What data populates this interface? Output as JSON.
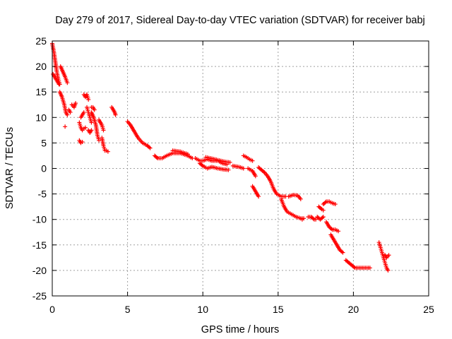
{
  "chart_data": {
    "type": "scatter",
    "title": "Day 279 of 2017, Sidereal Day-to-day VTEC variation (SDTVAR) for receiver babj",
    "xlabel": "GPS time / hours",
    "ylabel": "SDTVAR / TECUs",
    "xlim": [
      0,
      25
    ],
    "ylim": [
      -25,
      25
    ],
    "xticks": [
      0,
      5,
      10,
      15,
      20,
      25
    ],
    "yticks": [
      25,
      20,
      15,
      10,
      5,
      0,
      -5,
      -10,
      -15,
      -20,
      -25
    ],
    "xtick_labels": [
      "0",
      "5",
      "10",
      "15",
      "20",
      "25"
    ],
    "ytick_labels": [
      "25",
      "20",
      "15",
      "10",
      "5",
      "0",
      "-5",
      "-10",
      "-15",
      "-20",
      "-25"
    ],
    "grid": true,
    "marker": "plus",
    "color": "#ff0000",
    "series": [
      {
        "name": "SDTVAR",
        "segments": [
          [
            [
              0.0,
              24.5
            ],
            [
              0.1,
              23.0
            ],
            [
              0.2,
              21.0
            ],
            [
              0.3,
              19.0
            ],
            [
              0.4,
              17.5
            ],
            [
              0.5,
              16.5
            ]
          ],
          [
            [
              0.05,
              18.5
            ],
            [
              0.15,
              18.0
            ],
            [
              0.25,
              17.5
            ],
            [
              0.35,
              17.0
            ],
            [
              0.45,
              16.5
            ]
          ],
          [
            [
              0.55,
              20.0
            ],
            [
              0.7,
              19.0
            ],
            [
              0.85,
              18.0
            ],
            [
              1.0,
              16.8
            ]
          ],
          [
            [
              0.5,
              15.0
            ],
            [
              0.65,
              14.0
            ],
            [
              0.8,
              12.5
            ],
            [
              0.9,
              11.0
            ],
            [
              1.0,
              10.5
            ]
          ],
          [
            [
              0.85,
              8.2
            ]
          ],
          [
            [
              1.3,
              12.5
            ],
            [
              1.45,
              12.0
            ],
            [
              1.55,
              12.8
            ]
          ],
          [
            [
              1.1,
              11.5
            ],
            [
              1.2,
              11.0
            ]
          ],
          [
            [
              1.8,
              9.0
            ],
            [
              1.9,
              8.0
            ],
            [
              2.0,
              7.5
            ],
            [
              2.1,
              7.8
            ],
            [
              2.2,
              8.0
            ]
          ],
          [
            [
              1.8,
              5.5
            ],
            [
              1.9,
              5.0
            ],
            [
              2.0,
              5.2
            ]
          ],
          [
            [
              1.9,
              10.0
            ],
            [
              2.0,
              10.5
            ],
            [
              2.1,
              11.0
            ]
          ],
          [
            [
              2.1,
              14.5
            ],
            [
              2.2,
              14.0
            ],
            [
              2.3,
              14.5
            ],
            [
              2.4,
              13.5
            ]
          ],
          [
            [
              2.3,
              12.0
            ],
            [
              2.4,
              11.0
            ],
            [
              2.5,
              10.0
            ],
            [
              2.6,
              9.0
            ]
          ],
          [
            [
              2.4,
              7.5
            ],
            [
              2.5,
              7.0
            ],
            [
              2.6,
              7.5
            ]
          ],
          [
            [
              2.6,
              12.0
            ],
            [
              2.7,
              12.0
            ],
            [
              2.8,
              11.5
            ]
          ],
          [
            [
              2.6,
              11.0
            ],
            [
              2.75,
              10.0
            ],
            [
              2.9,
              8.5
            ],
            [
              3.0,
              6.5
            ],
            [
              3.1,
              5.5
            ]
          ],
          [
            [
              3.1,
              9.5
            ],
            [
              3.2,
              9.0
            ],
            [
              3.3,
              8.5
            ],
            [
              3.4,
              7.5
            ]
          ],
          [
            [
              3.3,
              6.0
            ],
            [
              3.4,
              4.5
            ],
            [
              3.5,
              3.5
            ],
            [
              3.6,
              3.5
            ],
            [
              3.7,
              3.3
            ]
          ],
          [
            [
              3.95,
              12.0
            ],
            [
              4.05,
              11.5
            ],
            [
              4.15,
              11.0
            ],
            [
              4.2,
              10.5
            ]
          ],
          [
            [
              5.0,
              9.2
            ],
            [
              5.2,
              8.5
            ],
            [
              5.4,
              7.5
            ],
            [
              5.7,
              6.0
            ],
            [
              6.0,
              5.0
            ],
            [
              6.3,
              4.5
            ],
            [
              6.5,
              4.0
            ]
          ],
          [
            [
              6.8,
              2.5
            ],
            [
              7.0,
              2.0
            ],
            [
              7.3,
              2.0
            ],
            [
              7.6,
              2.5
            ],
            [
              8.0,
              3.0
            ],
            [
              8.5,
              3.0
            ],
            [
              9.0,
              2.5
            ],
            [
              9.3,
              2.0
            ]
          ],
          [
            [
              8.0,
              3.5
            ],
            [
              8.5,
              3.3
            ],
            [
              9.0,
              2.8
            ]
          ],
          [
            [
              9.5,
              2.0
            ],
            [
              9.8,
              1.5
            ],
            [
              10.0,
              1.5
            ],
            [
              10.3,
              1.8
            ],
            [
              10.6,
              1.5
            ],
            [
              11.0,
              1.5
            ],
            [
              11.3,
              1.0
            ],
            [
              11.6,
              0.8
            ]
          ],
          [
            [
              9.8,
              1.0
            ],
            [
              10.0,
              0.5
            ],
            [
              10.3,
              0.0
            ],
            [
              10.6,
              0.3
            ],
            [
              11.0,
              0.0
            ],
            [
              11.4,
              -0.2
            ],
            [
              11.7,
              -0.3
            ]
          ],
          [
            [
              10.2,
              2.2
            ],
            [
              10.5,
              2.0
            ],
            [
              10.8,
              1.8
            ],
            [
              11.2,
              1.5
            ],
            [
              11.5,
              1.3
            ],
            [
              11.8,
              1.2
            ]
          ],
          [
            [
              12.0,
              0.5
            ],
            [
              12.4,
              0.3
            ],
            [
              12.7,
              0.0
            ]
          ],
          [
            [
              12.7,
              2.5
            ],
            [
              12.9,
              2.2
            ],
            [
              13.1,
              1.8
            ],
            [
              13.3,
              1.5
            ]
          ],
          [
            [
              13.0,
              0.0
            ],
            [
              13.3,
              -0.5
            ],
            [
              13.5,
              -1.5
            ]
          ],
          [
            [
              13.3,
              -3.5
            ],
            [
              13.5,
              -4.5
            ],
            [
              13.7,
              -5.5
            ]
          ],
          [
            [
              13.7,
              0.2
            ],
            [
              13.9,
              -0.3
            ],
            [
              14.1,
              -0.8
            ],
            [
              14.3,
              -1.5
            ],
            [
              14.5,
              -2.5
            ],
            [
              14.7,
              -4.0
            ],
            [
              14.9,
              -5.0
            ],
            [
              15.2,
              -5.5
            ],
            [
              15.5,
              -5.5
            ]
          ],
          [
            [
              15.2,
              -6.0
            ],
            [
              15.4,
              -7.5
            ],
            [
              15.6,
              -8.5
            ],
            [
              15.9,
              -9.0
            ],
            [
              16.2,
              -9.5
            ],
            [
              16.5,
              -9.8
            ],
            [
              16.7,
              -9.8
            ]
          ],
          [
            [
              15.7,
              -5.5
            ],
            [
              16.0,
              -5.2
            ],
            [
              16.3,
              -5.3
            ],
            [
              16.5,
              -6.0
            ]
          ],
          [
            [
              16.6,
              -10.0
            ]
          ],
          [
            [
              17.0,
              -9.5
            ],
            [
              17.2,
              -9.5
            ],
            [
              17.4,
              -10.0
            ],
            [
              17.5,
              -10.0
            ]
          ],
          [
            [
              17.6,
              -9.5
            ],
            [
              17.8,
              -10.0
            ],
            [
              18.0,
              -9.5
            ]
          ],
          [
            [
              17.7,
              -7.5
            ],
            [
              17.9,
              -8.0
            ],
            [
              18.0,
              -8.2
            ]
          ],
          [
            [
              18.0,
              -7.0
            ],
            [
              18.2,
              -6.5
            ],
            [
              18.4,
              -6.5
            ],
            [
              18.6,
              -6.8
            ],
            [
              18.8,
              -7.0
            ]
          ],
          [
            [
              18.2,
              -10.5
            ],
            [
              18.4,
              -11.5
            ],
            [
              18.6,
              -12.0
            ],
            [
              18.8,
              -12.0
            ],
            [
              19.0,
              -12.3
            ]
          ],
          [
            [
              18.5,
              -13.0
            ],
            [
              18.7,
              -14.0
            ],
            [
              18.9,
              -15.0
            ],
            [
              19.1,
              -16.0
            ],
            [
              19.3,
              -16.5
            ]
          ],
          [
            [
              19.5,
              -18.0
            ],
            [
              19.7,
              -18.5
            ],
            [
              19.9,
              -19.0
            ],
            [
              20.1,
              -19.5
            ],
            [
              20.4,
              -19.5
            ],
            [
              20.8,
              -19.5
            ],
            [
              21.1,
              -19.5
            ]
          ],
          [
            [
              21.7,
              -14.5
            ],
            [
              21.8,
              -15.5
            ],
            [
              21.9,
              -16.5
            ],
            [
              22.0,
              -17.5
            ],
            [
              22.1,
              -18.5
            ],
            [
              22.2,
              -19.5
            ],
            [
              22.3,
              -20.0
            ]
          ],
          [
            [
              22.1,
              -17.0
            ],
            [
              22.2,
              -17.5
            ],
            [
              22.35,
              -17.0
            ]
          ]
        ]
      }
    ]
  }
}
